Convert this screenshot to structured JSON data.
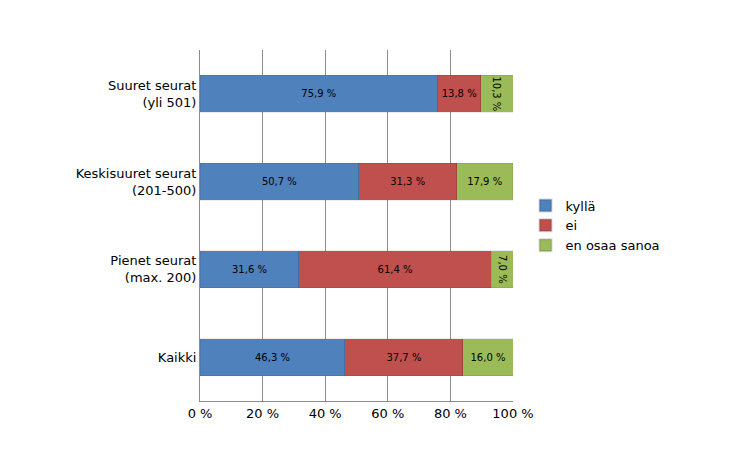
{
  "chart_data": {
    "type": "bar",
    "orientation": "horizontal",
    "stacked": true,
    "data_labels": true,
    "grid": true,
    "legend": "right",
    "categories": [
      "Suuret seurat\n(yli 501)",
      "Keskisuuret seurat\n(201-500)",
      "Pienet seurat\n(max. 200)",
      "Kaikki"
    ],
    "series": [
      {
        "name": "kyllä",
        "color": "#4f81bd",
        "values": [
          75.9,
          50.7,
          31.6,
          46.3
        ],
        "value_labels": [
          "75,9 %",
          "50,7 %",
          "31,6 %",
          "46,3 %"
        ]
      },
      {
        "name": "ei",
        "color": "#c0504d",
        "values": [
          13.8,
          31.3,
          61.4,
          37.7
        ],
        "value_labels": [
          "13,8 %",
          "31,3 %",
          "61,4 %",
          "37,7 %"
        ]
      },
      {
        "name": "en osaa sanoa",
        "color": "#9bbb59",
        "values": [
          10.3,
          17.9,
          7.0,
          16.0
        ],
        "value_labels": [
          "10,3 %",
          "17,9 %",
          "7,0 %",
          "16,0 %"
        ]
      }
    ],
    "xlim": [
      0,
      100
    ],
    "xticks": [
      {
        "value": 0,
        "label": "0 %"
      },
      {
        "value": 20,
        "label": "20 %"
      },
      {
        "value": 40,
        "label": "40 %"
      },
      {
        "value": 60,
        "label": "60 %"
      },
      {
        "value": 80,
        "label": "80 %"
      },
      {
        "value": 100,
        "label": "100 %"
      }
    ]
  }
}
